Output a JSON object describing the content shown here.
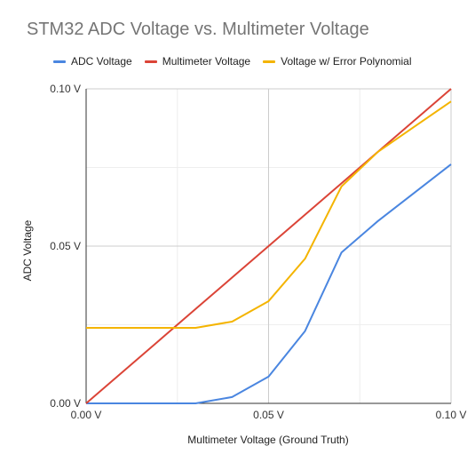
{
  "chart_data": {
    "type": "line",
    "title": "STM32 ADC Voltage vs. Multimeter Voltage",
    "xlabel": "Multimeter Voltage (Ground Truth)",
    "ylabel": "ADC Voltage",
    "xlim": [
      0,
      0.1
    ],
    "ylim": [
      0,
      0.1
    ],
    "x_ticks": [
      {
        "value": 0,
        "label": "0.00 V"
      },
      {
        "value": 0.05,
        "label": "0.05 V"
      },
      {
        "value": 0.1,
        "label": "0.10 V"
      }
    ],
    "y_ticks": [
      {
        "value": 0,
        "label": "0.00 V"
      },
      {
        "value": 0.05,
        "label": "0.05 V"
      },
      {
        "value": 0.1,
        "label": "0.10 V"
      }
    ],
    "grid": true,
    "legend_position": "top",
    "series": [
      {
        "name": "ADC Voltage",
        "color": "#4a86e0",
        "x": [
          0,
          0.01,
          0.02,
          0.03,
          0.04,
          0.05,
          0.06,
          0.07,
          0.08,
          0.09,
          0.1
        ],
        "y": [
          0,
          0,
          0,
          0,
          0.002,
          0.0085,
          0.023,
          0.048,
          0.058,
          0.067,
          0.076
        ]
      },
      {
        "name": "Multimeter Voltage",
        "color": "#db4437",
        "x": [
          0,
          0.01,
          0.02,
          0.03,
          0.04,
          0.05,
          0.06,
          0.07,
          0.08,
          0.09,
          0.1
        ],
        "y": [
          0,
          0.01,
          0.02,
          0.03,
          0.04,
          0.05,
          0.06,
          0.07,
          0.08,
          0.09,
          0.1
        ]
      },
      {
        "name": "Voltage w/ Error Polynomial",
        "color": "#f4b400",
        "x": [
          0,
          0.01,
          0.02,
          0.03,
          0.04,
          0.05,
          0.06,
          0.07,
          0.08,
          0.09,
          0.1
        ],
        "y": [
          0.024,
          0.024,
          0.024,
          0.024,
          0.026,
          0.0325,
          0.046,
          0.069,
          0.08,
          0.088,
          0.096
        ]
      }
    ]
  }
}
